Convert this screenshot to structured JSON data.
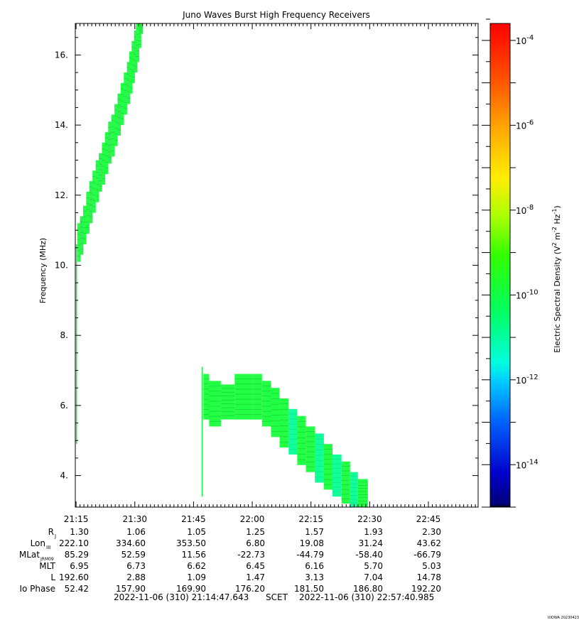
{
  "chart_data": {
    "type": "heatmap",
    "title": "Juno Waves Burst High Frequency Receivers",
    "ylabel": "Frequency (MHz)",
    "ylim": [
      3.1,
      16.9
    ],
    "yticks": [
      4,
      6,
      8,
      10,
      12,
      14,
      16
    ],
    "ytick_labels": [
      "4.",
      "6.",
      "8.",
      "10.",
      "12.",
      "14.",
      "16."
    ],
    "xlim_minutes": [
      1274.8,
      1377.7
    ],
    "xticks_minutes": [
      1275,
      1290,
      1305,
      1320,
      1335,
      1350,
      1365
    ],
    "xtick_labels": [
      "21:15",
      "21:30",
      "21:45",
      "22:00",
      "22:15",
      "22:30",
      "22:45"
    ],
    "colorbar": {
      "label_main": "Electric Spectral Density (V",
      "label_sup1": "2",
      "label_mid": " m",
      "label_sup2": "-2",
      "label_hz": " Hz",
      "label_sup3": "-1",
      "label_end": ")",
      "log_range": [
        -15,
        -3.6
      ],
      "scale": "log",
      "ticks": [
        {
          "base": "10",
          "exp": "-4",
          "log": -4
        },
        {
          "base": "10",
          "exp": "-6",
          "log": -6
        },
        {
          "base": "10",
          "exp": "-8",
          "log": -8
        },
        {
          "base": "10",
          "exp": "-10",
          "log": -10
        },
        {
          "base": "10",
          "exp": "-12",
          "log": -12
        },
        {
          "base": "10",
          "exp": "-14",
          "log": -14
        }
      ]
    },
    "emission_1": {
      "description_color": "#22ee44",
      "time_minutes": [
        1275.3,
        1276.0,
        1276.8,
        1277.6,
        1278.4,
        1279.2,
        1280.0,
        1280.8,
        1281.6,
        1282.4,
        1283.2,
        1284.0,
        1284.8,
        1285.6,
        1286.4,
        1287.2,
        1288.0,
        1288.6,
        1289.2,
        1289.8,
        1290.3,
        1290.8,
        1291.2
      ],
      "freq_low_MHz": [
        10.1,
        10.3,
        10.6,
        10.9,
        11.2,
        11.5,
        11.8,
        12.1,
        12.3,
        12.6,
        12.9,
        13.1,
        13.4,
        13.7,
        14.0,
        14.3,
        14.6,
        14.9,
        15.2,
        15.5,
        15.8,
        16.2,
        16.6
      ],
      "freq_high_MHz": [
        11.2,
        11.4,
        11.7,
        12.1,
        12.4,
        12.7,
        13.0,
        13.2,
        13.5,
        13.8,
        14.1,
        14.3,
        14.6,
        14.9,
        15.2,
        15.5,
        15.8,
        16.1,
        16.4,
        16.7,
        16.9,
        16.9,
        16.9
      ]
    },
    "emission_2": {
      "time_minutes": [
        1307.5,
        1309.0,
        1312.0,
        1315.5,
        1318.0,
        1320.3,
        1322.5,
        1324.8,
        1327.0,
        1329.3,
        1331.5,
        1333.7,
        1336.0,
        1338.3,
        1340.5,
        1342.8,
        1345.0,
        1347.0
      ],
      "freq_low_MHz": [
        5.6,
        5.4,
        5.6,
        5.6,
        5.6,
        5.6,
        5.4,
        5.1,
        4.8,
        4.6,
        4.3,
        4.1,
        3.8,
        3.6,
        3.4,
        3.2,
        3.1,
        3.1
      ],
      "freq_high_MHz": [
        6.9,
        6.7,
        6.6,
        6.9,
        6.9,
        6.9,
        6.7,
        6.5,
        6.2,
        5.9,
        5.7,
        5.4,
        5.2,
        4.9,
        4.6,
        4.4,
        4.1,
        3.9
      ],
      "cyan_time_minutes": [
        1329.3,
        1336.0,
        1340.5,
        1345.0
      ],
      "vertical_line_time_minutes": 1307.2,
      "vertical_line_low_MHz": 3.4,
      "vertical_line_high_MHz": 7.1
    },
    "left_line_time_minutes": 1275.1,
    "left_line_low_MHz": 4.9,
    "left_line_high_MHz": 10.6
  },
  "ephemeris": {
    "rows": [
      {
        "label": "R",
        "sub": "J",
        "values": [
          "1.30",
          "1.06",
          "1.05",
          "1.25",
          "1.57",
          "1.93",
          "2.30"
        ]
      },
      {
        "label": "Lon",
        "sub": "III",
        "values": [
          "222.10",
          "334.60",
          "353.50",
          "6.80",
          "19.08",
          "31.24",
          "43.62"
        ]
      },
      {
        "label": "MLat",
        "sub": "JRM09",
        "values": [
          "85.29",
          "52.59",
          "11.56",
          "-22.73",
          "-44.79",
          "-58.40",
          "-66.79"
        ]
      },
      {
        "label": "MLT",
        "sub": "",
        "values": [
          "6.95",
          "6.73",
          "6.62",
          "6.45",
          "6.16",
          "5.70",
          "5.03"
        ]
      },
      {
        "label": "L",
        "sub": "",
        "values": [
          "192.60",
          "2.88",
          "1.09",
          "1.47",
          "3.13",
          "7.04",
          "14.78"
        ]
      },
      {
        "label": "Io Phase",
        "sub": "",
        "values": [
          "52.42",
          "157.90",
          "169.90",
          "176.20",
          "181.50",
          "186.80",
          "192.20"
        ]
      }
    ]
  },
  "footer": {
    "start": "2022-11-06 (310) 21:14:47.643",
    "mid": "SCET",
    "end": "2022-11-06 (310) 22:57:40.985",
    "stamp": "UIOWA 20230423"
  }
}
